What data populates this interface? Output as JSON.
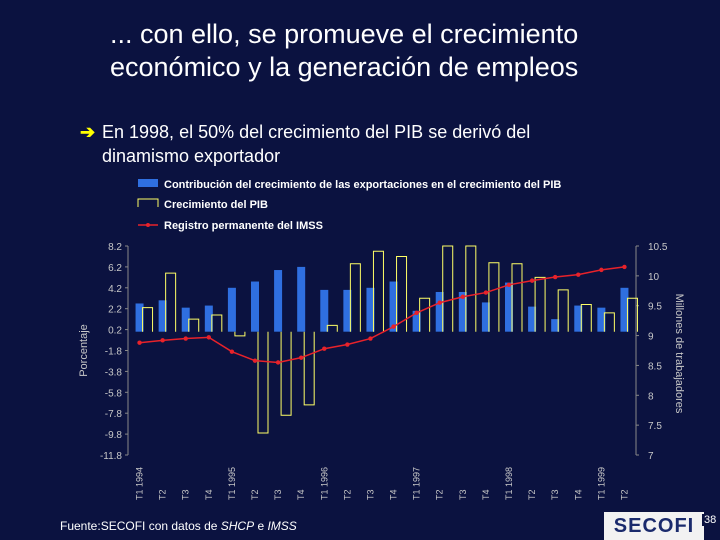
{
  "title_line1": "... con ello, se promueve el crecimiento",
  "title_line2": "económico y la generación de empleos",
  "bullet_arrow": "➔",
  "bullet_line1": "En 1998, el 50% del crecimiento del PIB se derivó del",
  "bullet_line2": "dinamismo exportador",
  "source": {
    "prefix": "Fuente:SECOFI con datos de ",
    "italic": "SHCP",
    "middle": " e ",
    "italic2": "IMSS"
  },
  "logo_text": "SECOFI",
  "page_number": "38",
  "colors": {
    "background": "#0b1240",
    "bars": "#2f6fe0",
    "gdp_outline": "#ffff66",
    "imss_line": "#e8222a",
    "text": "#ffffff",
    "axis_text": "#c8c8c8"
  },
  "chart_data": {
    "type": "bar",
    "legend": [
      "Contribución del crecimiento de las exportaciones en el crecimiento del PIB",
      "Crecimiento del PIB",
      "Registro permanente del IMSS"
    ],
    "categories": [
      "T1 1994",
      "T2",
      "T3",
      "T4",
      "T1 1995",
      "T2",
      "T3",
      "T4",
      "T1 1996",
      "T2",
      "T3",
      "T4",
      "T1 1997",
      "T2",
      "T3",
      "T4",
      "T1 1998",
      "T2",
      "T3",
      "T4",
      "T1 1999",
      "T2"
    ],
    "ylabel": "Porcentaje",
    "y2label": "Millones de trabajadores",
    "y_ticks": [
      "8.2",
      "6.2",
      "4.2",
      "2.2",
      "0.2",
      "-1.8",
      "-3.8",
      "-5.8",
      "-7.8",
      "-9.8",
      "-11.8"
    ],
    "ylim": [
      -11.8,
      8.2
    ],
    "y2_ticks": [
      "10.5",
      "10",
      "9.5",
      "9",
      "8.5",
      "8",
      "7.5",
      "7"
    ],
    "y2lim": [
      7,
      10.5
    ],
    "series": [
      {
        "name": "Contribución del crecimiento de las exportaciones en el crecimiento del PIB",
        "values": [
          2.7,
          3.0,
          2.3,
          2.5,
          4.2,
          4.8,
          5.9,
          6.2,
          4.0,
          4.0,
          4.2,
          4.8,
          2.0,
          3.8,
          3.8,
          2.8,
          4.7,
          2.4,
          1.2,
          2.5,
          2.3,
          4.2
        ]
      },
      {
        "name": "Crecimiento del PIB",
        "values": [
          2.3,
          5.6,
          1.2,
          1.6,
          -0.4,
          -9.7,
          -8.0,
          -7.0,
          0.6,
          6.5,
          7.7,
          7.2,
          3.2,
          8.6,
          8.2,
          6.6,
          6.5,
          5.2,
          4.0,
          2.6,
          1.8,
          3.2
        ]
      },
      {
        "name": "Registro permanente del IMSS",
        "values": [
          8.88,
          8.92,
          8.95,
          8.97,
          8.73,
          8.58,
          8.55,
          8.63,
          8.78,
          8.85,
          8.95,
          9.15,
          9.38,
          9.55,
          9.65,
          9.72,
          9.85,
          9.92,
          9.98,
          10.02,
          10.1,
          10.15
        ]
      }
    ]
  }
}
